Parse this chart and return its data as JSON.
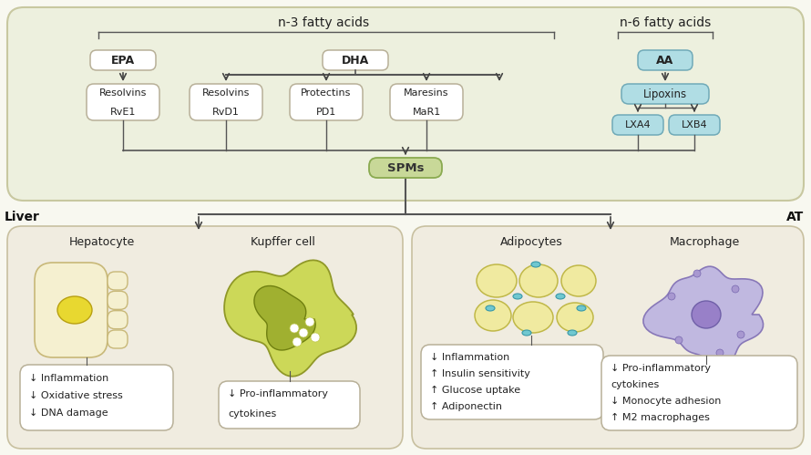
{
  "bg_color": "#f8f8f0",
  "top_panel_bg": "#edf0de",
  "top_panel_edge": "#c8c8a0",
  "bottom_left_bg": "#f0ece0",
  "bottom_right_bg": "#f0ece0",
  "bottom_edge": "#c8c0a0",
  "n3_label": "n-3 fatty acids",
  "n6_label": "n-6 fatty acids",
  "spms_label": "SPMs",
  "liver_label": "Liver",
  "at_label": "AT",
  "epa_label": "EPA",
  "dha_label": "DHA",
  "aa_label": "AA",
  "aa_box_color": "#b0dde4",
  "aa_box_edge": "#70aab8",
  "lipoxins_label": "Lipoxins",
  "lipoxins_box_color": "#b0dde4",
  "lipoxins_box_edge": "#70aab8",
  "lxa4_label": "LXA4",
  "lxb4_label": "LXB4",
  "lxa4_box_color": "#b0dde4",
  "lxa4_box_edge": "#70aab8",
  "lxb4_box_color": "#b0dde4",
  "lxb4_box_edge": "#70aab8",
  "resolvins_rve1_label": "Resolvins",
  "rve1_label": "RvE1",
  "resolvins_rvd1_label": "Resolvins",
  "rvd1_label": "RvD1",
  "protectins_label": "Protectins",
  "pd1_label": "PD1",
  "maresins_label": "Maresins",
  "mar1_label": "MaR1",
  "spms_box_color": "#c8d898",
  "spms_box_edge": "#8aaa50",
  "white_box": "#ffffff",
  "white_box_edge": "#b8b098",
  "hepatocyte_label": "Hepatocyte",
  "kupffer_label": "Kupffer cell",
  "adipocytes_label": "Adipocytes",
  "macrophage_label": "Macrophage",
  "hepatocyte_effects": [
    "↓ Inflammation",
    "↓ Oxidative stress",
    "↓ DNA damage"
  ],
  "kupffer_effects": [
    "↓ Pro-inflammatory",
    "cytokines"
  ],
  "adipocyte_effects": [
    "↓ Inflammation",
    "↑ Insulin sensitivity",
    "↑ Glucose uptake",
    "↑ Adiponectin"
  ],
  "macrophage_effects": [
    "↓ Pro-inflammatory",
    "cytokines",
    "↓ Monocyte adhesion",
    "↑ M2 macrophages"
  ],
  "arrow_color": "#444444",
  "line_color": "#555555",
  "text_color": "#222222"
}
